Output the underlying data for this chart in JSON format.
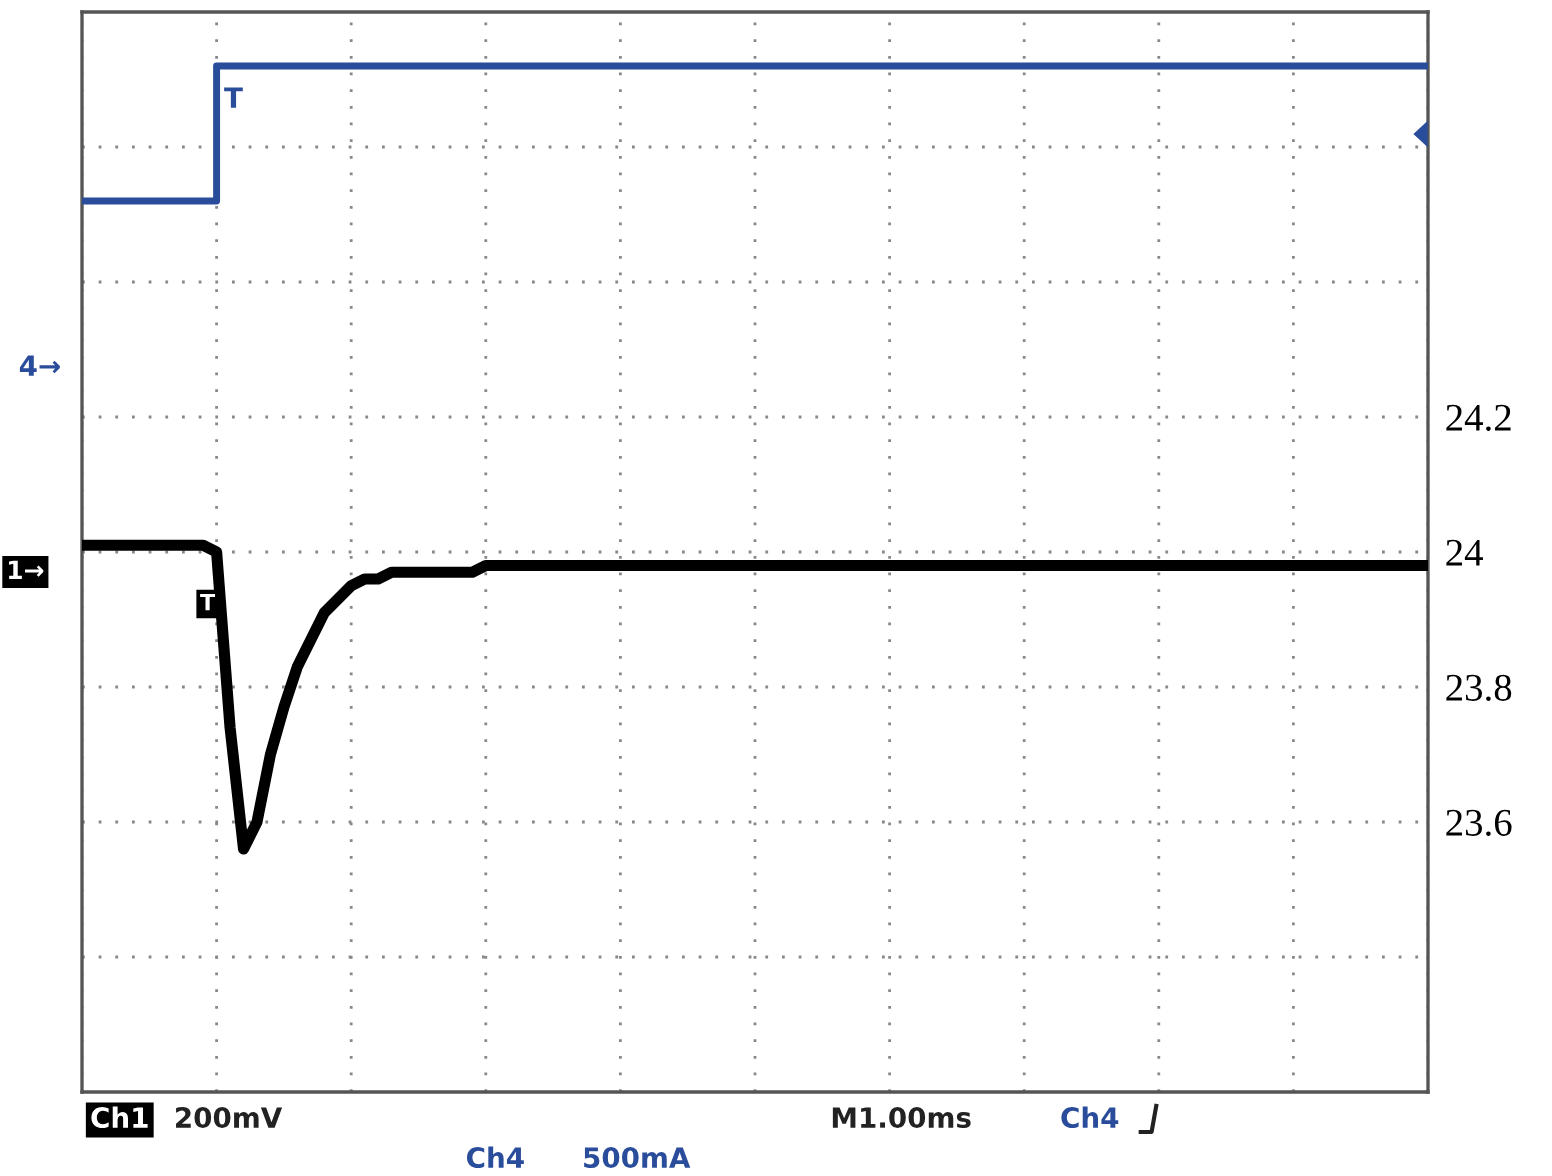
{
  "chart_data": {
    "type": "line",
    "categories": [
      null,
      null,
      null,
      null,
      null,
      null,
      null,
      null,
      null,
      null,
      null,
      null,
      null,
      null,
      null,
      null,
      null,
      null,
      null,
      null,
      null,
      null,
      null,
      null,
      null,
      null,
      null,
      null,
      null,
      null,
      null,
      null,
      null,
      null,
      null,
      null,
      null,
      null,
      null,
      null,
      null,
      null,
      null,
      null,
      null,
      null,
      null,
      null,
      null,
      null,
      null,
      null,
      null,
      null,
      null,
      null,
      null,
      null,
      null,
      null,
      null,
      null,
      null,
      null,
      null,
      null,
      null,
      null,
      null,
      null,
      null,
      null,
      null,
      null,
      null,
      null,
      null,
      null,
      null,
      null,
      null,
      null,
      null,
      null,
      null,
      null,
      null,
      null,
      null,
      null,
      null,
      null,
      null,
      null,
      null,
      null,
      null,
      null,
      null,
      null,
      null
    ],
    "series": [
      {
        "type": "step",
        "color": "#2a4d9b",
        "values": [
          24.52,
          24.52,
          24.52,
          24.52,
          24.52,
          24.52,
          24.52,
          24.52,
          24.52,
          24.52,
          24.72,
          24.72,
          24.72,
          24.72,
          24.72,
          24.72,
          24.72,
          24.72,
          24.72,
          24.72,
          24.72,
          24.72,
          24.72,
          24.72,
          24.72,
          24.72,
          24.72,
          24.72,
          24.72,
          24.72,
          24.72,
          24.72,
          24.72,
          24.72,
          24.72,
          24.72,
          24.72,
          24.72,
          24.72,
          24.72,
          24.72,
          24.72,
          24.72,
          24.72,
          24.72,
          24.72,
          24.72,
          24.72,
          24.72,
          24.72,
          24.72,
          24.72,
          24.72,
          24.72,
          24.72,
          24.72,
          24.72,
          24.72,
          24.72,
          24.72,
          24.72,
          24.72,
          24.72,
          24.72,
          24.72,
          24.72,
          24.72,
          24.72,
          24.72,
          24.72,
          24.72,
          24.72,
          24.72,
          24.72,
          24.72,
          24.72,
          24.72,
          24.72,
          24.72,
          24.72,
          24.72,
          24.72,
          24.72,
          24.72,
          24.72,
          24.72,
          24.72,
          24.72,
          24.72,
          24.72,
          24.72,
          24.72,
          24.72,
          24.72,
          24.72,
          24.72,
          24.72,
          24.72,
          24.72,
          24.72,
          24.72
        ]
      },
      {
        "color": "#000000",
        "values": [
          24.01,
          24.01,
          24.01,
          24.01,
          24.01,
          24.01,
          24.01,
          24.01,
          24.01,
          24.01,
          24.0,
          23.74,
          23.56,
          23.6,
          23.7,
          23.77,
          23.83,
          23.87,
          23.91,
          23.93,
          23.95,
          23.96,
          23.96,
          23.97,
          23.97,
          23.97,
          23.97,
          23.97,
          23.97,
          23.97,
          23.98,
          23.98,
          23.98,
          23.98,
          23.98,
          23.98,
          23.98,
          23.98,
          23.98,
          23.98,
          23.98,
          23.98,
          23.98,
          23.98,
          23.98,
          23.98,
          23.98,
          23.98,
          23.98,
          23.98,
          23.98,
          23.98,
          23.98,
          23.98,
          23.98,
          23.98,
          23.98,
          23.98,
          23.98,
          23.98,
          23.98,
          23.98,
          23.98,
          23.98,
          23.98,
          23.98,
          23.98,
          23.98,
          23.98,
          23.98,
          23.98,
          23.98,
          23.98,
          23.98,
          23.98,
          23.98,
          23.98,
          23.98,
          23.98,
          23.98,
          23.98,
          23.98,
          23.98,
          23.98,
          23.98,
          23.98,
          23.98,
          23.98,
          23.98,
          23.98,
          23.98,
          23.98,
          23.98,
          23.98,
          23.98,
          23.98,
          23.98,
          23.98,
          23.98,
          23.98,
          23.98
        ]
      }
    ],
    "ylim": [
      23.2,
      24.8
    ],
    "yticks": [
      {
        "value": 24.6,
        "label": null
      },
      {
        "value": 24.4,
        "label": null
      },
      24.2,
      24,
      23.8,
      23.6,
      {
        "value": 23.4,
        "label": null
      }
    ],
    "tick_labels": "y",
    "grid": true,
    "annotations": [
      "4→",
      "1→",
      "T",
      "T",
      "Ch1",
      "200mV",
      "M1.00ms",
      "Ch4",
      "Ch4",
      "500mA"
    ]
  }
}
